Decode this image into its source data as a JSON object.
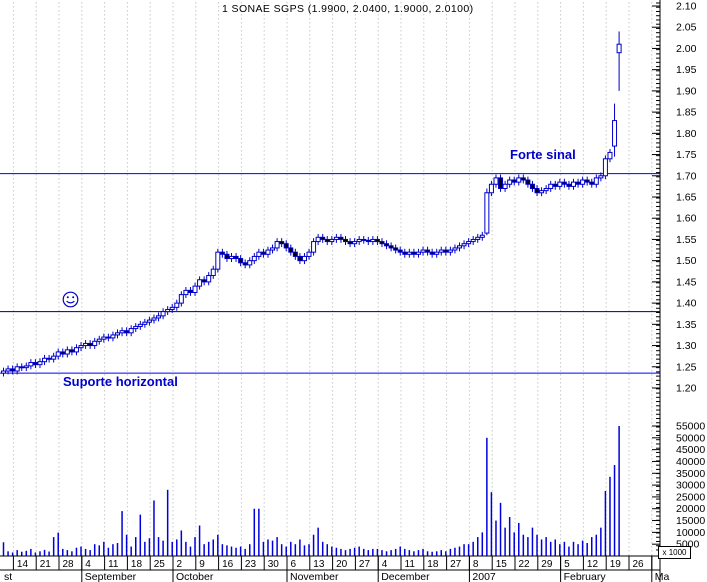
{
  "title": "1 SONAE SGPS (1.9900, 2.0400, 1.9000, 2.0100)",
  "annotations": {
    "resistance_label": "Forte sinal",
    "support_label": "Suporte horizontal",
    "smiley_icon": "smiley-face-emoticon",
    "annotation_color": "#0000cc"
  },
  "colors": {
    "background": "#ffffff",
    "candle_stroke": "#0000cc",
    "candle_up_fill": "#ffffff",
    "candle_down_fill": "#000000",
    "volume_bar": "#0000dd",
    "gridline": "#c9c9c9",
    "axis": "#000000",
    "resistance_line": "#0000ff",
    "mid_line": "#000066",
    "support_line": "#0000ff"
  },
  "chart_data": {
    "type": "candlestick",
    "instrument": "1 SONAE SGPS",
    "title": "1 SONAE SGPS (1.9900, 2.0400, 1.9000, 2.0100)",
    "last_ohlc": {
      "open": 1.99,
      "high": 2.04,
      "low": 1.9,
      "close": 2.01
    },
    "price_axis": {
      "min": 1.2,
      "max": 2.1,
      "step": 0.05,
      "labels": [
        "2.10",
        "2.05",
        "2.00",
        "1.95",
        "1.90",
        "1.85",
        "1.80",
        "1.75",
        "1.70",
        "1.65",
        "1.60",
        "1.55",
        "1.50",
        "1.45",
        "1.40",
        "1.35",
        "1.30",
        "1.25",
        "1.20"
      ]
    },
    "volume_axis": {
      "max": 55000,
      "step": 5000,
      "labels": [
        "55000",
        "50000",
        "45000",
        "40000",
        "35000",
        "30000",
        "25000",
        "20000",
        "15000",
        "10000",
        "5000"
      ],
      "unit_note": "x 1000"
    },
    "x_axis": {
      "week_ticks": [
        "14",
        "21",
        "28",
        "4",
        "11",
        "18",
        "25",
        "2",
        "9",
        "16",
        "23",
        "30",
        "6",
        "13",
        "20",
        "27",
        "4",
        "11",
        "18",
        "27",
        "8",
        "15",
        "22",
        "29",
        "5",
        "12",
        "19",
        "26"
      ],
      "months": [
        {
          "label": "st",
          "week_start": null
        },
        {
          "label": "September",
          "week_start": 3
        },
        {
          "label": "October",
          "week_start": 7
        },
        {
          "label": "November",
          "week_start": 12
        },
        {
          "label": "December",
          "week_start": 16
        },
        {
          "label": "2007",
          "week_start": 20
        },
        {
          "label": "February",
          "week_start": 24
        },
        {
          "label": "Ma",
          "week_start": 28
        }
      ]
    },
    "hlines": [
      {
        "price": 1.705,
        "color": "#0000ff",
        "role": "resistance",
        "label": "Forte sinal"
      },
      {
        "price": 1.38,
        "color": "#000066",
        "role": "intermediate-level",
        "label": ""
      },
      {
        "price": 1.235,
        "color": "#0000ff",
        "role": "support",
        "label": "Suporte horizontal"
      }
    ],
    "closes": [
      1.24,
      1.245,
      1.24,
      1.25,
      1.248,
      1.252,
      1.26,
      1.255,
      1.262,
      1.27,
      1.268,
      1.275,
      1.285,
      1.28,
      1.29,
      1.285,
      1.295,
      1.3,
      1.305,
      1.3,
      1.31,
      1.315,
      1.32,
      1.318,
      1.325,
      1.33,
      1.335,
      1.33,
      1.34,
      1.345,
      1.35,
      1.355,
      1.36,
      1.365,
      1.37,
      1.38,
      1.385,
      1.39,
      1.4,
      1.42,
      1.43,
      1.425,
      1.44,
      1.455,
      1.45,
      1.465,
      1.48,
      1.52,
      1.515,
      1.505,
      1.51,
      1.505,
      1.495,
      1.49,
      1.5,
      1.51,
      1.52,
      1.515,
      1.525,
      1.53,
      1.545,
      1.54,
      1.53,
      1.52,
      1.51,
      1.5,
      1.51,
      1.52,
      1.545,
      1.555,
      1.55,
      1.545,
      1.55,
      1.555,
      1.55,
      1.545,
      1.54,
      1.545,
      1.55,
      1.548,
      1.545,
      1.55,
      1.545,
      1.54,
      1.535,
      1.53,
      1.525,
      1.52,
      1.515,
      1.52,
      1.515,
      1.52,
      1.525,
      1.52,
      1.515,
      1.52,
      1.525,
      1.52,
      1.525,
      1.53,
      1.535,
      1.54,
      1.545,
      1.55,
      1.555,
      1.56,
      1.66,
      1.68,
      1.695,
      1.67,
      1.68,
      1.69,
      1.685,
      1.695,
      1.69,
      1.68,
      1.67,
      1.66,
      1.665,
      1.67,
      1.68,
      1.675,
      1.685,
      1.68,
      1.675,
      1.685,
      1.68,
      1.69,
      1.685,
      1.68,
      1.695,
      1.7,
      1.74,
      1.755,
      1.83,
      2.01
    ],
    "volumes": [
      5800,
      2000,
      1500,
      2500,
      1800,
      2200,
      3000,
      1500,
      2000,
      2600,
      1900,
      8000,
      9900,
      3000,
      2500,
      2000,
      3500,
      4000,
      3000,
      2500,
      5000,
      4500,
      6000,
      3500,
      5000,
      5500,
      19000,
      9000,
      4000,
      8000,
      17500,
      6000,
      7500,
      23500,
      8000,
      6500,
      28000,
      6000,
      7000,
      10800,
      6000,
      4000,
      8000,
      12900,
      5000,
      6000,
      7000,
      9000,
      5000,
      4500,
      4000,
      3500,
      4000,
      3000,
      5000,
      20000,
      20000,
      6000,
      7000,
      6500,
      8000,
      5000,
      4000,
      6000,
      5000,
      7000,
      4500,
      5000,
      9000,
      12000,
      6000,
      5000,
      4000,
      3500,
      3000,
      2500,
      3000,
      3500,
      4000,
      3000,
      2500,
      3000,
      3000,
      2500,
      2000,
      2500,
      3000,
      4000,
      3000,
      2500,
      2000,
      2500,
      3000,
      2000,
      1800,
      2000,
      2500,
      2000,
      3000,
      3500,
      4000,
      5000,
      5000,
      6000,
      8000,
      10000,
      50000,
      27000,
      15000,
      22500,
      12000,
      16500,
      10000,
      14000,
      9000,
      8000,
      12000,
      9000,
      7000,
      8000,
      6000,
      7000,
      5000,
      6000,
      4000,
      6000,
      5000,
      6500,
      5500,
      8000,
      9000,
      12000,
      27500,
      33500,
      38500,
      55000
    ],
    "ohlc_overrides": {
      "106": [
        1.565,
        1.67,
        1.56,
        1.66
      ],
      "134": [
        1.77,
        1.87,
        1.745,
        1.83
      ],
      "135": [
        1.99,
        2.04,
        1.9,
        2.01
      ]
    }
  }
}
